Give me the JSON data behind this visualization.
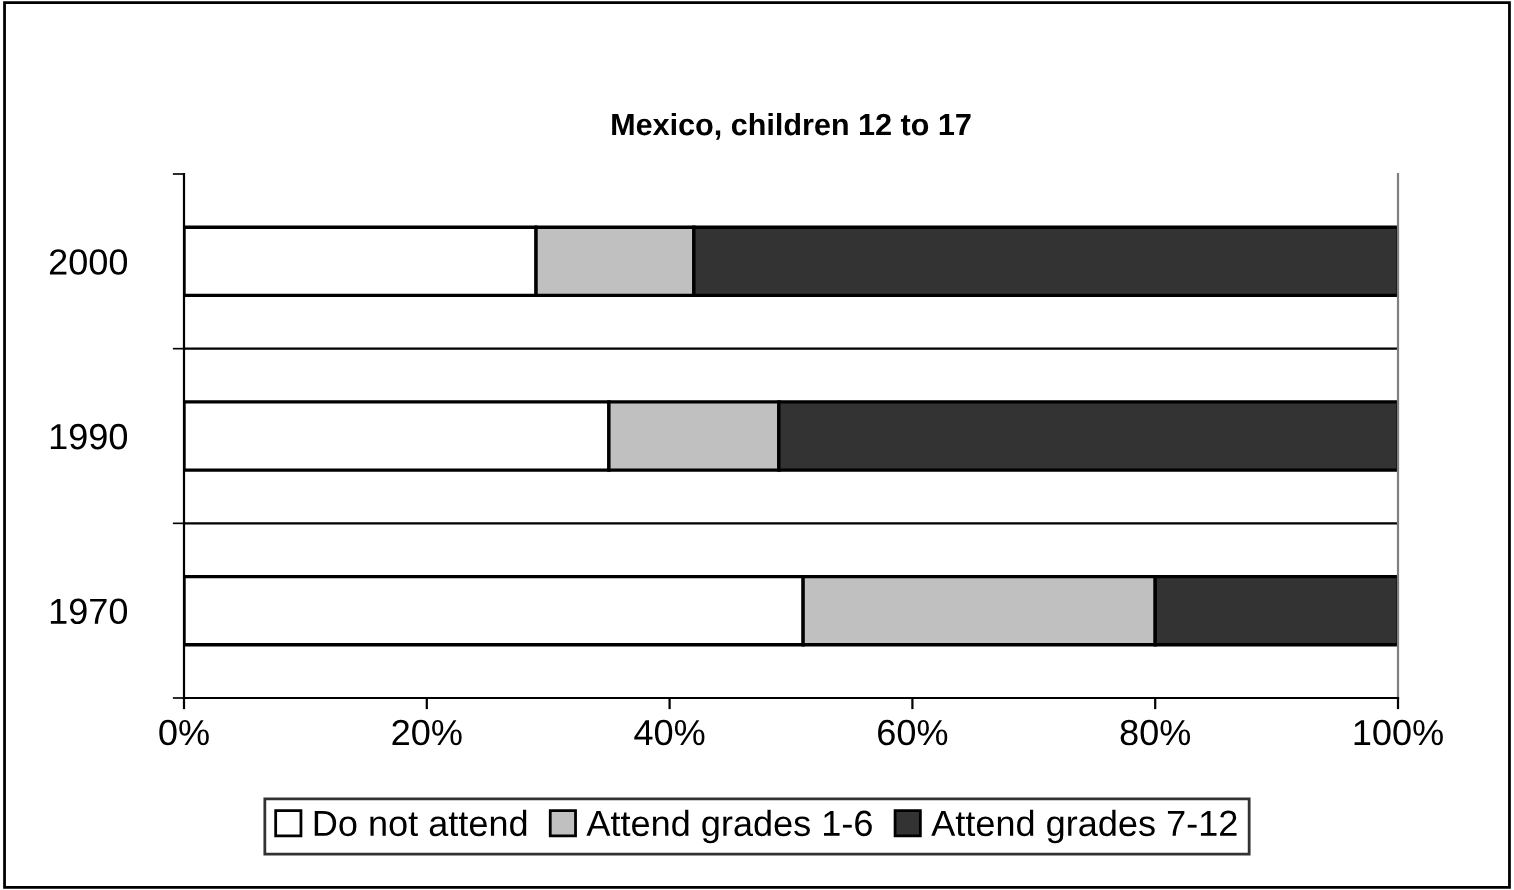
{
  "chart_data": {
    "type": "bar",
    "orientation": "horizontal",
    "stacked": true,
    "title": "Mexico, children 12 to 17",
    "categories": [
      "2000",
      "1990",
      "1970"
    ],
    "series": [
      {
        "name": "Do not attend",
        "color": "#ffffff",
        "values": [
          29,
          35,
          51
        ]
      },
      {
        "name": "Attend grades 1-6",
        "color": "#c0c0c0",
        "values": [
          13,
          14,
          29
        ]
      },
      {
        "name": "Attend grades 7-12",
        "color": "#333333",
        "values": [
          58,
          51,
          20
        ]
      }
    ],
    "xlim": [
      0,
      100
    ],
    "xticks": [
      {
        "value": 0,
        "label": "0%"
      },
      {
        "value": 20,
        "label": "20%"
      },
      {
        "value": 40,
        "label": "40%"
      },
      {
        "value": 60,
        "label": "60%"
      },
      {
        "value": 80,
        "label": "80%"
      },
      {
        "value": 100,
        "label": "100%"
      }
    ],
    "grid": "y",
    "legend": "bottom"
  }
}
